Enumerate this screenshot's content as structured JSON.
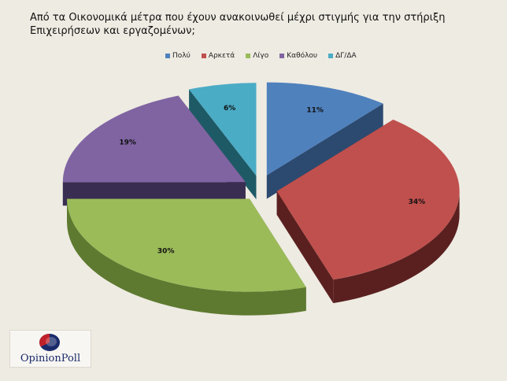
{
  "chart_data": {
    "type": "pie",
    "title": [
      "Από τα Οικονομικά μέτρα που έχουν ανακοινωθεί μέχρι στιγμής για την στήριξη",
      "Επιχειρήσεων  και εργαζομένων;"
    ],
    "categories": [
      "Πολύ",
      "Αρκετά",
      "Λίγο",
      "Καθόλου",
      "ΔΓ/ΔΑ"
    ],
    "values": [
      11,
      34,
      30,
      19,
      6
    ],
    "labels": [
      "11%",
      "34%",
      "30%",
      "19%",
      "6%"
    ],
    "colors": [
      "#4f81bd",
      "#c0504d",
      "#9bbb59",
      "#8064a2",
      "#4bacc6"
    ],
    "side_colors": [
      "#2c4a70",
      "#5a2020",
      "#5e7a30",
      "#3a2d52",
      "#1e5a66"
    ],
    "legend_position": "top",
    "style": "3d-exploded"
  },
  "brand": {
    "logo_text": "OpinionPoll"
  }
}
